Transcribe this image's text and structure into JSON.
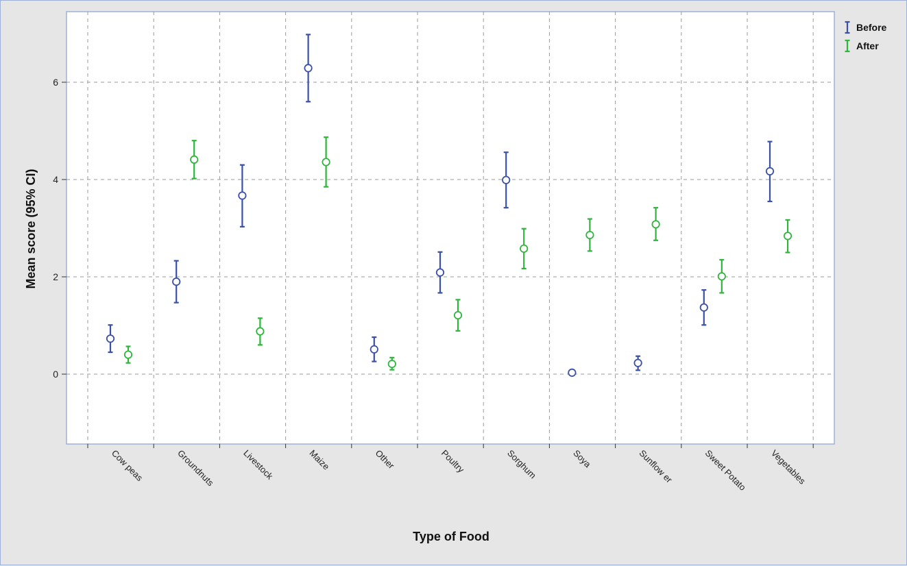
{
  "chart_data": {
    "type": "scatter",
    "subtype": "error-bar",
    "title": "",
    "xlabel": "Type of Food",
    "ylabel": "Mean score (95% CI)",
    "ylim": [
      -1.4,
      7.5
    ],
    "yticks": [
      0,
      2,
      4,
      6
    ],
    "grid": true,
    "legend_position": "top-right",
    "categories": [
      "Cowpeas",
      "Groundnuts",
      "Livestock",
      "Maize",
      "Other",
      "Poultry",
      "Sorghum",
      "Soya",
      "Sunflower",
      "Sweet Potato",
      "Vegetables"
    ],
    "category_labels_display": [
      "Cow peas",
      "Groundnuts",
      "Livestock",
      "Maize",
      "Other",
      "Poultry",
      "Sorghum",
      "Soya",
      "Sunflow er",
      "Sweet Potato",
      "Vegetables"
    ],
    "series": [
      {
        "name": "Before",
        "color": "#3a50a8",
        "mean": [
          0.73,
          1.9,
          3.67,
          6.29,
          0.51,
          2.09,
          3.99,
          0.03,
          0.23,
          1.37,
          4.17
        ],
        "lower": [
          0.45,
          1.47,
          3.03,
          5.6,
          0.26,
          1.67,
          3.42,
          0.0,
          0.08,
          1.01,
          3.55
        ],
        "upper": [
          1.01,
          2.33,
          4.3,
          6.98,
          0.76,
          2.51,
          4.56,
          0.06,
          0.37,
          1.73,
          4.78
        ]
      },
      {
        "name": "After",
        "color": "#2fb53b",
        "mean": [
          0.4,
          4.41,
          0.88,
          4.36,
          0.21,
          1.21,
          2.58,
          2.86,
          3.08,
          2.01,
          2.84
        ],
        "lower": [
          0.23,
          4.02,
          0.6,
          3.85,
          0.09,
          0.89,
          2.17,
          2.53,
          2.75,
          1.67,
          2.5
        ],
        "upper": [
          0.57,
          4.8,
          1.15,
          4.87,
          0.34,
          1.53,
          2.99,
          3.19,
          3.42,
          2.35,
          3.17
        ]
      }
    ]
  }
}
